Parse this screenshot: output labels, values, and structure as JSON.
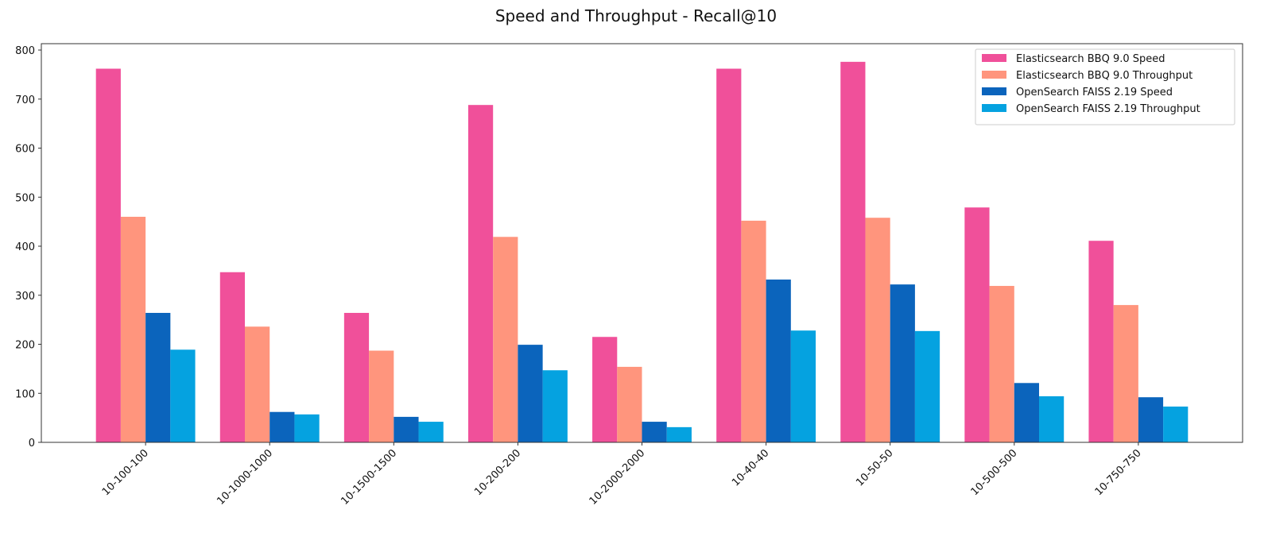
{
  "chart_data": {
    "type": "bar",
    "title": "Speed and Throughput - Recall@10",
    "xlabel": "",
    "ylabel": "",
    "categories": [
      "10-100-100",
      "10-1000-1000",
      "10-1500-1500",
      "10-200-200",
      "10-2000-2000",
      "10-40-40",
      "10-50-50",
      "10-500-500",
      "10-750-750"
    ],
    "series": [
      {
        "name": "Elasticsearch BBQ 9.0 Speed",
        "color": "#f0509a",
        "values": [
          762,
          347,
          264,
          688,
          215,
          762,
          776,
          479,
          411
        ]
      },
      {
        "name": "Elasticsearch BBQ 9.0 Throughput",
        "color": "#ff957d",
        "values": [
          460,
          236,
          187,
          419,
          154,
          452,
          458,
          319,
          280
        ]
      },
      {
        "name": "OpenSearch FAISS 2.19 Speed",
        "color": "#0b64bc",
        "values": [
          264,
          62,
          52,
          199,
          42,
          332,
          322,
          121,
          92
        ]
      },
      {
        "name": "OpenSearch FAISS 2.19 Throughput",
        "color": "#05a2e0",
        "values": [
          189,
          57,
          42,
          147,
          31,
          228,
          227,
          94,
          73
        ]
      }
    ],
    "ylim": [
      0,
      813
    ],
    "yticks": [
      0,
      100,
      200,
      300,
      400,
      500,
      600,
      700,
      800
    ],
    "grid": false,
    "legend": "top-right"
  }
}
